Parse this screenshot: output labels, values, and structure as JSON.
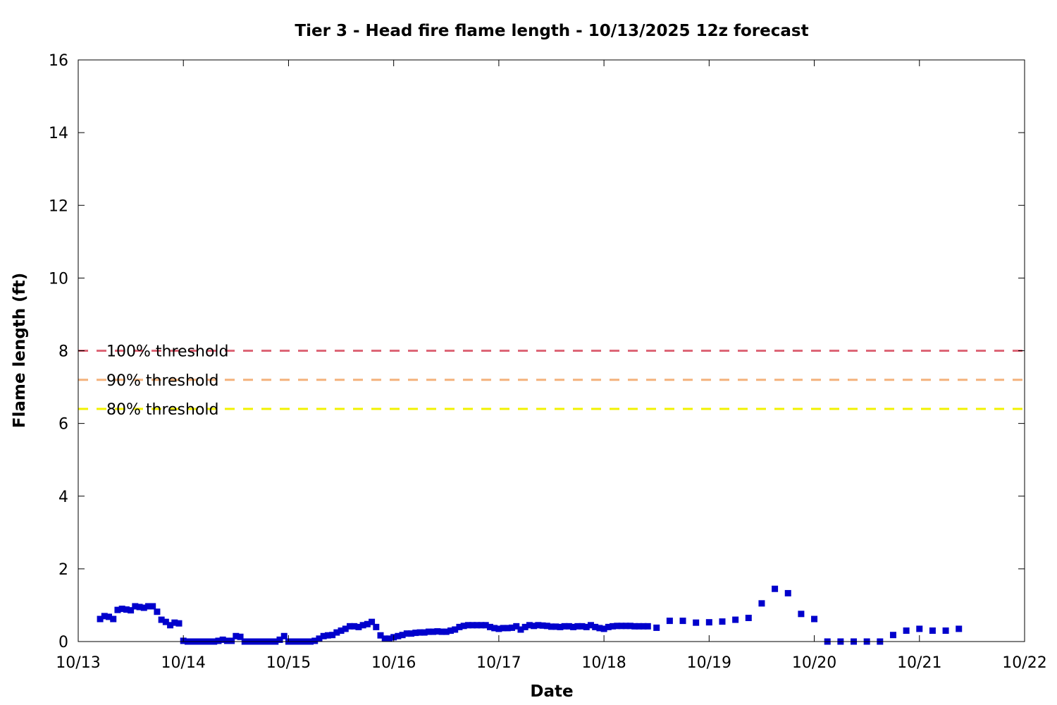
{
  "chart_data": {
    "type": "scatter",
    "title": "Tier 3 - Head fire flame length - 10/13/2025 12z forecast",
    "xlabel": "Date",
    "ylabel": "Flame length (ft)",
    "xlim": [
      "2025-10-13 00:00",
      "2025-10-22 00:00"
    ],
    "ylim": [
      0,
      16
    ],
    "x_ticks": [
      "10/13",
      "10/14",
      "10/15",
      "10/16",
      "10/17",
      "10/18",
      "10/19",
      "10/20",
      "10/21",
      "10/22"
    ],
    "y_ticks": [
      "0",
      "2",
      "4",
      "6",
      "8",
      "10",
      "12",
      "14",
      "16"
    ],
    "grid": false,
    "marker_color": "#0000cc",
    "thresholds": [
      {
        "name": "100% threshold",
        "value": 8.0,
        "color": "#dd6677"
      },
      {
        "name": "90% threshold",
        "value": 7.2,
        "color": "#f4b27c"
      },
      {
        "name": "80% threshold",
        "value": 6.4,
        "color": "#f2f200"
      }
    ],
    "series": [
      {
        "points": [
          [
            "2025-10-13 05:00",
            0.62
          ],
          [
            "2025-10-13 06:00",
            0.7
          ],
          [
            "2025-10-13 07:00",
            0.68
          ],
          [
            "2025-10-13 08:00",
            0.62
          ],
          [
            "2025-10-13 09:00",
            0.87
          ],
          [
            "2025-10-13 10:00",
            0.9
          ],
          [
            "2025-10-13 11:00",
            0.88
          ],
          [
            "2025-10-13 12:00",
            0.86
          ],
          [
            "2025-10-13 13:00",
            0.97
          ],
          [
            "2025-10-13 14:00",
            0.95
          ],
          [
            "2025-10-13 15:00",
            0.93
          ],
          [
            "2025-10-13 16:00",
            0.97
          ],
          [
            "2025-10-13 17:00",
            0.97
          ],
          [
            "2025-10-13 18:00",
            0.82
          ],
          [
            "2025-10-13 19:00",
            0.6
          ],
          [
            "2025-10-13 20:00",
            0.54
          ],
          [
            "2025-10-13 21:00",
            0.45
          ],
          [
            "2025-10-13 22:00",
            0.52
          ],
          [
            "2025-10-13 23:00",
            0.5
          ],
          [
            "2025-10-14 00:00",
            0.02
          ],
          [
            "2025-10-14 01:00",
            0.0
          ],
          [
            "2025-10-14 02:00",
            0.0
          ],
          [
            "2025-10-14 03:00",
            0.0
          ],
          [
            "2025-10-14 04:00",
            0.0
          ],
          [
            "2025-10-14 05:00",
            0.0
          ],
          [
            "2025-10-14 06:00",
            0.0
          ],
          [
            "2025-10-14 07:00",
            0.0
          ],
          [
            "2025-10-14 08:00",
            0.02
          ],
          [
            "2025-10-14 09:00",
            0.05
          ],
          [
            "2025-10-14 10:00",
            0.02
          ],
          [
            "2025-10-14 11:00",
            0.02
          ],
          [
            "2025-10-14 12:00",
            0.15
          ],
          [
            "2025-10-14 13:00",
            0.13
          ],
          [
            "2025-10-14 14:00",
            0.0
          ],
          [
            "2025-10-14 15:00",
            0.0
          ],
          [
            "2025-10-14 16:00",
            0.0
          ],
          [
            "2025-10-14 17:00",
            0.0
          ],
          [
            "2025-10-14 18:00",
            0.0
          ],
          [
            "2025-10-14 19:00",
            0.0
          ],
          [
            "2025-10-14 20:00",
            0.0
          ],
          [
            "2025-10-14 21:00",
            0.0
          ],
          [
            "2025-10-14 22:00",
            0.05
          ],
          [
            "2025-10-14 23:00",
            0.15
          ],
          [
            "2025-10-15 00:00",
            0.0
          ],
          [
            "2025-10-15 01:00",
            0.0
          ],
          [
            "2025-10-15 02:00",
            0.0
          ],
          [
            "2025-10-15 03:00",
            0.0
          ],
          [
            "2025-10-15 04:00",
            0.0
          ],
          [
            "2025-10-15 05:00",
            0.0
          ],
          [
            "2025-10-15 06:00",
            0.02
          ],
          [
            "2025-10-15 07:00",
            0.08
          ],
          [
            "2025-10-15 08:00",
            0.15
          ],
          [
            "2025-10-15 09:00",
            0.17
          ],
          [
            "2025-10-15 10:00",
            0.18
          ],
          [
            "2025-10-15 11:00",
            0.25
          ],
          [
            "2025-10-15 12:00",
            0.3
          ],
          [
            "2025-10-15 13:00",
            0.35
          ],
          [
            "2025-10-15 14:00",
            0.42
          ],
          [
            "2025-10-15 15:00",
            0.42
          ],
          [
            "2025-10-15 16:00",
            0.4
          ],
          [
            "2025-10-15 17:00",
            0.45
          ],
          [
            "2025-10-15 18:00",
            0.48
          ],
          [
            "2025-10-15 19:00",
            0.54
          ],
          [
            "2025-10-15 20:00",
            0.4
          ],
          [
            "2025-10-15 21:00",
            0.17
          ],
          [
            "2025-10-15 22:00",
            0.08
          ],
          [
            "2025-10-15 23:00",
            0.08
          ],
          [
            "2025-10-16 00:00",
            0.12
          ],
          [
            "2025-10-16 01:00",
            0.15
          ],
          [
            "2025-10-16 02:00",
            0.18
          ],
          [
            "2025-10-16 03:00",
            0.22
          ],
          [
            "2025-10-16 04:00",
            0.22
          ],
          [
            "2025-10-16 05:00",
            0.24
          ],
          [
            "2025-10-16 06:00",
            0.25
          ],
          [
            "2025-10-16 07:00",
            0.25
          ],
          [
            "2025-10-16 08:00",
            0.27
          ],
          [
            "2025-10-16 09:00",
            0.27
          ],
          [
            "2025-10-16 10:00",
            0.28
          ],
          [
            "2025-10-16 11:00",
            0.27
          ],
          [
            "2025-10-16 12:00",
            0.27
          ],
          [
            "2025-10-16 13:00",
            0.3
          ],
          [
            "2025-10-16 14:00",
            0.33
          ],
          [
            "2025-10-16 15:00",
            0.4
          ],
          [
            "2025-10-16 16:00",
            0.43
          ],
          [
            "2025-10-16 17:00",
            0.45
          ],
          [
            "2025-10-16 18:00",
            0.45
          ],
          [
            "2025-10-16 19:00",
            0.45
          ],
          [
            "2025-10-16 20:00",
            0.45
          ],
          [
            "2025-10-16 21:00",
            0.45
          ],
          [
            "2025-10-16 22:00",
            0.4
          ],
          [
            "2025-10-16 23:00",
            0.37
          ],
          [
            "2025-10-17 00:00",
            0.35
          ],
          [
            "2025-10-17 01:00",
            0.37
          ],
          [
            "2025-10-17 02:00",
            0.37
          ],
          [
            "2025-10-17 03:00",
            0.38
          ],
          [
            "2025-10-17 04:00",
            0.42
          ],
          [
            "2025-10-17 05:00",
            0.33
          ],
          [
            "2025-10-17 06:00",
            0.4
          ],
          [
            "2025-10-17 07:00",
            0.45
          ],
          [
            "2025-10-17 08:00",
            0.43
          ],
          [
            "2025-10-17 09:00",
            0.45
          ],
          [
            "2025-10-17 10:00",
            0.44
          ],
          [
            "2025-10-17 11:00",
            0.43
          ],
          [
            "2025-10-17 12:00",
            0.41
          ],
          [
            "2025-10-17 13:00",
            0.41
          ],
          [
            "2025-10-17 14:00",
            0.4
          ],
          [
            "2025-10-17 15:00",
            0.42
          ],
          [
            "2025-10-17 16:00",
            0.42
          ],
          [
            "2025-10-17 17:00",
            0.4
          ],
          [
            "2025-10-17 18:00",
            0.42
          ],
          [
            "2025-10-17 19:00",
            0.42
          ],
          [
            "2025-10-17 20:00",
            0.4
          ],
          [
            "2025-10-17 21:00",
            0.45
          ],
          [
            "2025-10-17 22:00",
            0.4
          ],
          [
            "2025-10-17 23:00",
            0.37
          ],
          [
            "2025-10-18 00:00",
            0.35
          ],
          [
            "2025-10-18 01:00",
            0.4
          ],
          [
            "2025-10-18 02:00",
            0.42
          ],
          [
            "2025-10-18 03:00",
            0.43
          ],
          [
            "2025-10-18 04:00",
            0.43
          ],
          [
            "2025-10-18 05:00",
            0.43
          ],
          [
            "2025-10-18 06:00",
            0.43
          ],
          [
            "2025-10-18 07:00",
            0.42
          ],
          [
            "2025-10-18 08:00",
            0.42
          ],
          [
            "2025-10-18 09:00",
            0.42
          ],
          [
            "2025-10-18 10:00",
            0.42
          ],
          [
            "2025-10-18 12:00",
            0.38
          ],
          [
            "2025-10-18 15:00",
            0.57
          ],
          [
            "2025-10-18 18:00",
            0.57
          ],
          [
            "2025-10-18 21:00",
            0.52
          ],
          [
            "2025-10-19 00:00",
            0.53
          ],
          [
            "2025-10-19 03:00",
            0.55
          ],
          [
            "2025-10-19 06:00",
            0.6
          ],
          [
            "2025-10-19 09:00",
            0.65
          ],
          [
            "2025-10-19 12:00",
            1.05
          ],
          [
            "2025-10-19 15:00",
            1.45
          ],
          [
            "2025-10-19 18:00",
            1.33
          ],
          [
            "2025-10-19 21:00",
            0.76
          ],
          [
            "2025-10-20 00:00",
            0.62
          ],
          [
            "2025-10-20 03:00",
            0.0
          ],
          [
            "2025-10-20 06:00",
            0.0
          ],
          [
            "2025-10-20 09:00",
            0.0
          ],
          [
            "2025-10-20 12:00",
            0.0
          ],
          [
            "2025-10-20 15:00",
            0.0
          ],
          [
            "2025-10-20 18:00",
            0.18
          ],
          [
            "2025-10-20 21:00",
            0.3
          ],
          [
            "2025-10-21 00:00",
            0.35
          ],
          [
            "2025-10-21 03:00",
            0.3
          ],
          [
            "2025-10-21 06:00",
            0.3
          ],
          [
            "2025-10-21 09:00",
            0.35
          ]
        ]
      }
    ]
  }
}
